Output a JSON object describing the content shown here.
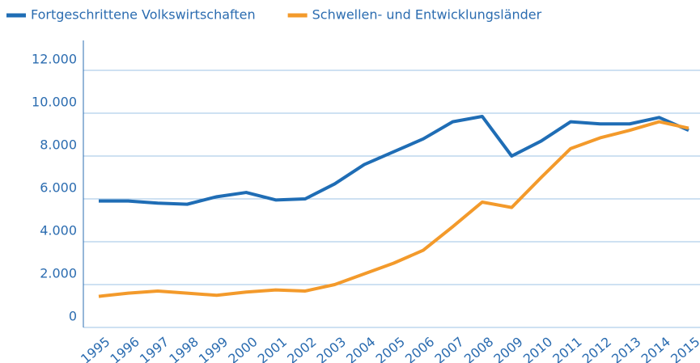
{
  "chart_data": {
    "type": "line",
    "categories": [
      "1995",
      "1996",
      "1997",
      "1998",
      "1999",
      "2000",
      "2001",
      "2002",
      "2003",
      "2004",
      "2005",
      "2006",
      "2007",
      "2008",
      "2009",
      "2010",
      "2011",
      "2012",
      "2013",
      "2014",
      "2015"
    ],
    "series": [
      {
        "name": "Fortgeschrittene Volkswirtschaften",
        "color": "#1f6db5",
        "values": [
          5900,
          5900,
          5800,
          5750,
          6100,
          6300,
          5950,
          6000,
          6700,
          7600,
          8200,
          8800,
          9600,
          9850,
          8000,
          8700,
          9600,
          9500,
          9500,
          9800,
          9200
        ]
      },
      {
        "name": "Schwellen- und Entwicklungsländer",
        "color": "#f39a2b",
        "values": [
          1450,
          1600,
          1700,
          1600,
          1500,
          1650,
          1750,
          1700,
          2000,
          2500,
          3000,
          3600,
          4700,
          5850,
          5600,
          7000,
          8350,
          8850,
          9200,
          9600,
          9300
        ]
      }
    ],
    "ylim": [
      0,
      12000
    ],
    "yticks": [
      0,
      {
        "value": 2000,
        "label": "2.000"
      },
      {
        "value": 4000,
        "label": "4.000"
      },
      {
        "value": 6000,
        "label": "6.000"
      },
      {
        "value": 8000,
        "label": "8.000"
      },
      {
        "value": 10000,
        "label": "10.000"
      },
      {
        "value": 12000,
        "label": "12.000"
      }
    ],
    "grid": true,
    "legend": "top"
  }
}
